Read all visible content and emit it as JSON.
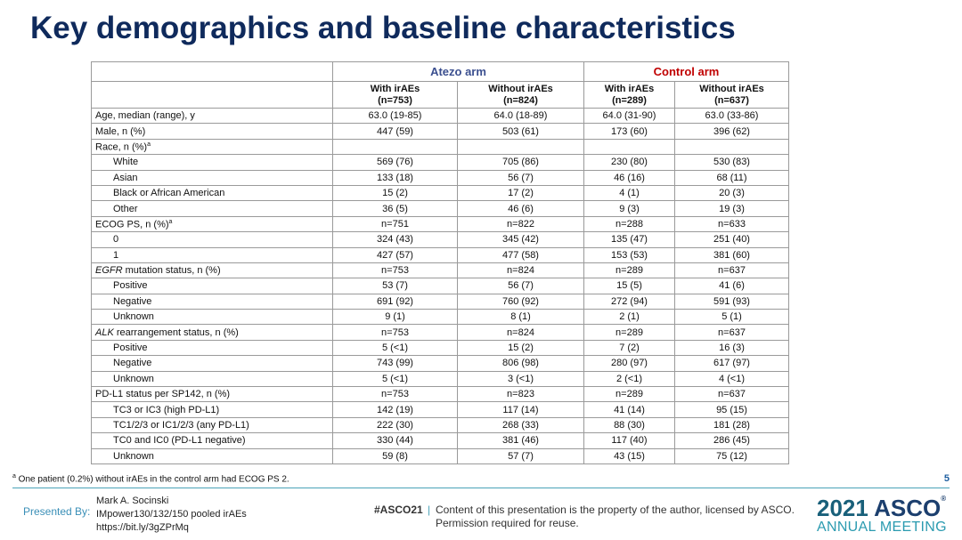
{
  "header": {
    "title": "Key demographics and baseline characteristics"
  },
  "table": {
    "groups": [
      "Atezo arm",
      "Control arm"
    ],
    "columns": [
      [
        "With irAEs",
        "(n=753)"
      ],
      [
        "Without irAEs",
        "(n=824)"
      ],
      [
        "With irAEs",
        "(n=289)"
      ],
      [
        "Without irAEs",
        "(n=637)"
      ]
    ],
    "rows": [
      {
        "label": "Age, median (range), y",
        "indent": false,
        "cells": [
          "63.0 (19-85)",
          "64.0 (18-89)",
          "64.0 (31-90)",
          "63.0 (33-86)"
        ]
      },
      {
        "label": "Male, n (%)",
        "indent": false,
        "cells": [
          "447 (59)",
          "503 (61)",
          "173 (60)",
          "396 (62)"
        ]
      },
      {
        "label": "Race, n (%)",
        "sup": "a",
        "indent": false,
        "cells": []
      },
      {
        "label": "White",
        "indent": true,
        "cells": [
          "569 (76)",
          "705 (86)",
          "230 (80)",
          "530 (83)"
        ]
      },
      {
        "label": "Asian",
        "indent": true,
        "cells": [
          "133 (18)",
          "56 (7)",
          "46 (16)",
          "68 (11)"
        ]
      },
      {
        "label": "Black or African American",
        "indent": true,
        "cells": [
          "15 (2)",
          "17 (2)",
          "4 (1)",
          "20 (3)"
        ]
      },
      {
        "label": "Other",
        "indent": true,
        "cells": [
          "36 (5)",
          "46 (6)",
          "9 (3)",
          "19 (3)"
        ]
      },
      {
        "label": "ECOG PS, n (%)",
        "sup": "a",
        "indent": false,
        "cells": [
          "n=751",
          "n=822",
          "n=288",
          "n=633"
        ]
      },
      {
        "label": "0",
        "indent": true,
        "cells": [
          "324 (43)",
          "345 (42)",
          "135 (47)",
          "251 (40)"
        ]
      },
      {
        "label": "1",
        "indent": true,
        "cells": [
          "427 (57)",
          "477 (58)",
          "153 (53)",
          "381 (60)"
        ]
      },
      {
        "label_italic": "EGFR",
        "label": " mutation status, n (%)",
        "indent": false,
        "cells": [
          "n=753",
          "n=824",
          "n=289",
          "n=637"
        ]
      },
      {
        "label": "Positive",
        "indent": true,
        "cells": [
          "53 (7)",
          "56 (7)",
          "15 (5)",
          "41 (6)"
        ]
      },
      {
        "label": "Negative",
        "indent": true,
        "cells": [
          "691 (92)",
          "760 (92)",
          "272 (94)",
          "591 (93)"
        ]
      },
      {
        "label": "Unknown",
        "indent": true,
        "cells": [
          "9 (1)",
          "8 (1)",
          "2 (1)",
          "5 (1)"
        ]
      },
      {
        "label_italic": "ALK",
        "label": " rearrangement status, n (%)",
        "indent": false,
        "cells": [
          "n=753",
          "n=824",
          "n=289",
          "n=637"
        ]
      },
      {
        "label": "Positive",
        "indent": true,
        "cells": [
          "5 (<1)",
          "15 (2)",
          "7 (2)",
          "16 (3)"
        ]
      },
      {
        "label": "Negative",
        "indent": true,
        "cells": [
          "743 (99)",
          "806 (98)",
          "280 (97)",
          "617 (97)"
        ]
      },
      {
        "label": "Unknown",
        "indent": true,
        "cells": [
          "5 (<1)",
          "3 (<1)",
          "2 (<1)",
          "4 (<1)"
        ]
      },
      {
        "label": "PD-L1 status per SP142, n (%)",
        "indent": false,
        "cells": [
          "n=753",
          "n=823",
          "n=289",
          "n=637"
        ]
      },
      {
        "label": "TC3 or IC3 (high PD-L1)",
        "indent": true,
        "cells": [
          "142 (19)",
          "117 (14)",
          "41 (14)",
          "95 (15)"
        ]
      },
      {
        "label": "TC1/2/3 or IC1/2/3 (any PD-L1)",
        "indent": true,
        "cells": [
          "222 (30)",
          "268 (33)",
          "88 (30)",
          "181 (28)"
        ]
      },
      {
        "label": "TC0 and IC0 (PD-L1 negative)",
        "indent": true,
        "cells": [
          "330 (44)",
          "381 (46)",
          "117 (40)",
          "286 (45)"
        ]
      },
      {
        "label": "Unknown",
        "indent": true,
        "cells": [
          "59 (8)",
          "57 (7)",
          "43 (15)",
          "75 (12)"
        ]
      }
    ]
  },
  "footnote": {
    "sup": "a",
    "text": " One patient (0.2%) without irAEs in the control arm had ECOG PS 2."
  },
  "page_number": "5",
  "footer": {
    "presented_by": "Presented By:",
    "presenter": [
      "Mark A. Socinski",
      "IMpower130/132/150 pooled irAEs",
      "https://bit.ly/3gZPrMq"
    ],
    "hashtag": "#ASCO21",
    "separator": "|",
    "disclaimer": [
      "Content of this presentation is the property of the author, licensed by ASCO.",
      "Permission required for reuse."
    ],
    "logo": {
      "year": "2021",
      "name": "ASCO",
      "mark": "®",
      "tagline": "ANNUAL MEETING"
    }
  }
}
